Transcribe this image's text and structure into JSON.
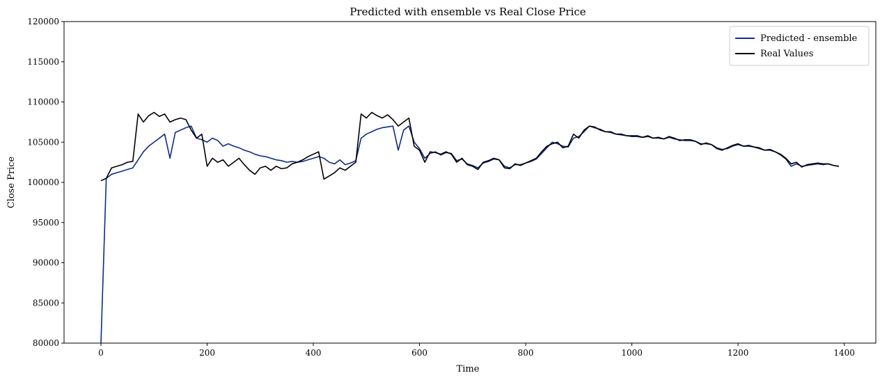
{
  "chart_data": {
    "type": "line",
    "title": "Predicted with ensemble vs Real Close Price",
    "xlabel": "Time",
    "ylabel": "Close Price",
    "x": [
      0,
      10,
      20,
      30,
      40,
      50,
      60,
      70,
      80,
      90,
      100,
      110,
      120,
      130,
      140,
      150,
      160,
      170,
      180,
      190,
      200,
      210,
      220,
      230,
      240,
      250,
      260,
      270,
      280,
      290,
      300,
      310,
      320,
      330,
      340,
      350,
      360,
      370,
      380,
      390,
      400,
      410,
      420,
      430,
      440,
      450,
      460,
      470,
      480,
      490,
      500,
      510,
      520,
      530,
      540,
      550,
      560,
      570,
      580,
      590,
      600,
      610,
      620,
      630,
      640,
      650,
      660,
      670,
      680,
      690,
      700,
      710,
      720,
      730,
      740,
      750,
      760,
      770,
      780,
      790,
      800,
      810,
      820,
      830,
      840,
      850,
      860,
      870,
      880,
      890,
      900,
      910,
      920,
      930,
      940,
      950,
      960,
      970,
      980,
      990,
      1000,
      1010,
      1020,
      1030,
      1040,
      1050,
      1060,
      1070,
      1080,
      1090,
      1100,
      1110,
      1120,
      1130,
      1140,
      1150,
      1160,
      1170,
      1180,
      1190,
      1200,
      1210,
      1220,
      1230,
      1240,
      1250,
      1260,
      1270,
      1280,
      1290,
      1300,
      1310,
      1320,
      1330,
      1340,
      1350,
      1360,
      1370,
      1380,
      1390
    ],
    "series": [
      {
        "name": "Predicted - ensemble",
        "color": "#0d2c84",
        "values": [
          80000,
          100500,
          101000,
          101200,
          101400,
          101600,
          101800,
          102800,
          103800,
          104500,
          105000,
          105500,
          106000,
          103000,
          106200,
          106500,
          106800,
          107000,
          105500,
          105300,
          105000,
          105500,
          105200,
          104500,
          104800,
          104500,
          104300,
          104000,
          103800,
          103500,
          103300,
          103200,
          103000,
          102800,
          102700,
          102500,
          102600,
          102500,
          102600,
          102800,
          103000,
          103200,
          103000,
          102500,
          102300,
          102800,
          102200,
          102400,
          102700,
          105500,
          106000,
          106300,
          106600,
          106800,
          106900,
          107000,
          104000,
          106500,
          107000,
          105000,
          104200,
          103000,
          103600,
          103800,
          103400,
          103700,
          103600,
          102700,
          102900,
          102300,
          102100,
          101800,
          102400,
          102600,
          102900,
          102800,
          102000,
          101800,
          102200,
          102200,
          102400,
          102600,
          102900,
          103600,
          104300,
          105000,
          104800,
          104500,
          104400,
          105500,
          105700,
          106300,
          107000,
          106900,
          106500,
          106300,
          106200,
          106000,
          105900,
          105800,
          105700,
          105700,
          105600,
          105700,
          105500,
          105500,
          105400,
          105600,
          105400,
          105300,
          105200,
          105200,
          105100,
          104800,
          104800,
          104700,
          104300,
          104100,
          104200,
          104500,
          104700,
          104500,
          104500,
          104400,
          104200,
          104000,
          104000,
          103800,
          103400,
          102900,
          102000,
          102300,
          102000,
          102100,
          102200,
          102300,
          102200,
          102300,
          102100,
          102000
        ]
      },
      {
        "name": "Real Values",
        "color": "#000000",
        "values": [
          100200,
          100500,
          101800,
          102000,
          102200,
          102500,
          102600,
          108500,
          107500,
          108300,
          108700,
          108200,
          108500,
          107500,
          107800,
          108000,
          107800,
          106500,
          105500,
          106000,
          102000,
          103000,
          102500,
          102800,
          102000,
          102500,
          103000,
          102200,
          101500,
          101000,
          101800,
          102000,
          101500,
          102000,
          101700,
          101800,
          102300,
          102500,
          102800,
          103200,
          103500,
          103800,
          100400,
          100800,
          101200,
          101800,
          101500,
          102000,
          102500,
          108500,
          108000,
          108700,
          108300,
          108000,
          108400,
          107800,
          107000,
          107500,
          108000,
          104500,
          104000,
          102500,
          103800,
          103700,
          103500,
          103800,
          103500,
          102500,
          103000,
          102200,
          102000,
          101600,
          102500,
          102700,
          103000,
          102800,
          101800,
          101700,
          102300,
          102100,
          102400,
          102700,
          103000,
          103800,
          104500,
          104800,
          105000,
          104300,
          104500,
          106000,
          105500,
          106500,
          107000,
          106800,
          106600,
          106300,
          106300,
          106000,
          106000,
          105800,
          105800,
          105800,
          105600,
          105800,
          105500,
          105600,
          105400,
          105700,
          105500,
          105200,
          105300,
          105300,
          105100,
          104700,
          104900,
          104700,
          104200,
          104000,
          104300,
          104600,
          104800,
          104500,
          104600,
          104400,
          104300,
          104000,
          104100,
          103800,
          103500,
          103000,
          102300,
          102500,
          101900,
          102200,
          102300,
          102400,
          102300,
          102300,
          102100,
          102000
        ]
      }
    ],
    "xlim": [
      -69.5,
      1459.5
    ],
    "ylim": [
      80000,
      120000
    ],
    "xticks": [
      0,
      200,
      400,
      600,
      800,
      1000,
      1200,
      1400
    ],
    "yticks": [
      80000,
      85000,
      90000,
      95000,
      100000,
      105000,
      110000,
      115000,
      120000
    ],
    "grid": false,
    "legend": "upper-right"
  }
}
